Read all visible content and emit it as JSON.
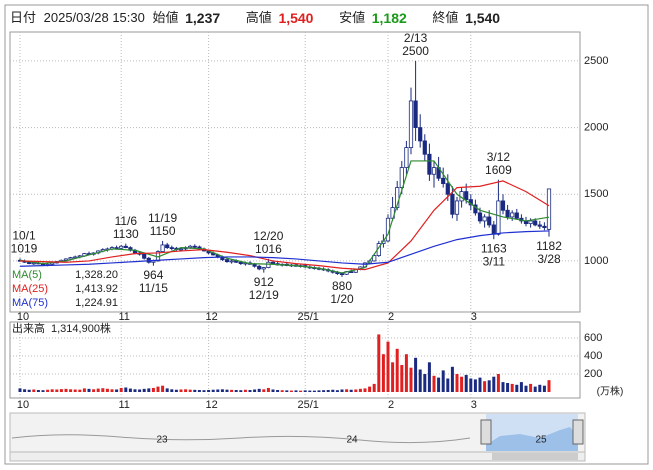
{
  "header": {
    "date_label": "日付",
    "date": "2025/03/28 15:30",
    "open_label": "始値",
    "open": "1,237",
    "high_label": "高値",
    "high": "1,540",
    "low_label": "安値",
    "low": "1,182",
    "close_label": "終値",
    "close": "1,540"
  },
  "chart_data": {
    "type": "candlestick",
    "up_color": "#ffffff",
    "down_color": "#1a2a80",
    "edge_color": "#1a2a80",
    "ylim": [
      617,
      2717
    ],
    "yticks": [
      1000,
      1500,
      2000,
      2500
    ],
    "grid": true,
    "xticks": [
      {
        "value": 0,
        "label": "10"
      },
      {
        "value": 22,
        "label": "11"
      },
      {
        "value": 41,
        "label": "12"
      },
      {
        "value": 62,
        "label": "25/1"
      },
      {
        "value": 80,
        "label": "2"
      },
      {
        "value": 98,
        "label": "3"
      }
    ],
    "candles": [
      [
        1005,
        1019,
        995,
        1000
      ],
      [
        1000,
        1010,
        985,
        990
      ],
      [
        990,
        998,
        975,
        980
      ],
      [
        980,
        992,
        970,
        985
      ],
      [
        985,
        995,
        975,
        978
      ],
      [
        978,
        988,
        965,
        970
      ],
      [
        970,
        982,
        960,
        975
      ],
      [
        975,
        990,
        970,
        985
      ],
      [
        985,
        1000,
        980,
        995
      ],
      [
        995,
        1010,
        988,
        1005
      ],
      [
        1005,
        1020,
        1000,
        1015
      ],
      [
        1015,
        1030,
        1008,
        1025
      ],
      [
        1025,
        1040,
        1015,
        1030
      ],
      [
        1030,
        1045,
        1020,
        1038
      ],
      [
        1038,
        1060,
        1030,
        1055
      ],
      [
        1055,
        1070,
        1045,
        1050
      ],
      [
        1050,
        1065,
        1040,
        1060
      ],
      [
        1060,
        1080,
        1050,
        1075
      ],
      [
        1075,
        1095,
        1065,
        1085
      ],
      [
        1085,
        1100,
        1070,
        1090
      ],
      [
        1090,
        1110,
        1080,
        1100
      ],
      [
        1100,
        1115,
        1085,
        1095
      ],
      [
        1095,
        1120,
        1090,
        1110
      ],
      [
        1110,
        1130,
        1095,
        1100
      ],
      [
        1100,
        1110,
        1070,
        1080
      ],
      [
        1080,
        1090,
        1050,
        1060
      ],
      [
        1060,
        1075,
        1040,
        1050
      ],
      [
        1050,
        1060,
        1010,
        1020
      ],
      [
        1020,
        1030,
        980,
        990
      ],
      [
        990,
        1010,
        964,
        1000
      ],
      [
        1000,
        1080,
        995,
        1070
      ],
      [
        1070,
        1150,
        1065,
        1120
      ],
      [
        1120,
        1135,
        1090,
        1100
      ],
      [
        1100,
        1115,
        1080,
        1095
      ],
      [
        1095,
        1105,
        1075,
        1085
      ],
      [
        1085,
        1100,
        1070,
        1090
      ],
      [
        1090,
        1110,
        1080,
        1100
      ],
      [
        1100,
        1120,
        1090,
        1110
      ],
      [
        1110,
        1125,
        1095,
        1105
      ],
      [
        1105,
        1115,
        1085,
        1090
      ],
      [
        1090,
        1100,
        1070,
        1075
      ],
      [
        1075,
        1085,
        1050,
        1060
      ],
      [
        1060,
        1070,
        1040,
        1045
      ],
      [
        1045,
        1055,
        1020,
        1030
      ],
      [
        1030,
        1040,
        1000,
        1010
      ],
      [
        1010,
        1020,
        985,
        995
      ],
      [
        995,
        1010,
        980,
        1000
      ],
      [
        1000,
        1012,
        985,
        990
      ],
      [
        990,
        1000,
        970,
        980
      ],
      [
        980,
        995,
        965,
        985
      ],
      [
        985,
        998,
        970,
        975
      ],
      [
        975,
        985,
        950,
        960
      ],
      [
        960,
        970,
        930,
        940
      ],
      [
        940,
        955,
        912,
        950
      ],
      [
        950,
        1016,
        945,
        990
      ],
      [
        990,
        1005,
        970,
        980
      ],
      [
        980,
        992,
        965,
        970
      ],
      [
        970,
        982,
        958,
        975
      ],
      [
        975,
        985,
        960,
        965
      ],
      [
        965,
        978,
        955,
        970
      ],
      [
        970,
        980,
        955,
        960
      ],
      [
        960,
        972,
        950,
        965
      ],
      [
        965,
        975,
        945,
        955
      ],
      [
        955,
        965,
        940,
        950
      ],
      [
        950,
        960,
        935,
        945
      ],
      [
        945,
        955,
        930,
        940
      ],
      [
        940,
        952,
        925,
        935
      ],
      [
        935,
        945,
        915,
        925
      ],
      [
        925,
        935,
        905,
        915
      ],
      [
        915,
        925,
        895,
        905
      ],
      [
        905,
        915,
        880,
        900
      ],
      [
        900,
        925,
        895,
        920
      ],
      [
        920,
        935,
        910,
        915
      ],
      [
        915,
        940,
        910,
        935
      ],
      [
        935,
        960,
        930,
        955
      ],
      [
        955,
        990,
        950,
        985
      ],
      [
        985,
        1010,
        975,
        1000
      ],
      [
        1000,
        1050,
        995,
        1040
      ],
      [
        1040,
        1150,
        1030,
        1130
      ],
      [
        1130,
        1200,
        1100,
        1150
      ],
      [
        1150,
        1350,
        1140,
        1320
      ],
      [
        1320,
        1480,
        1300,
        1400
      ],
      [
        1400,
        1600,
        1380,
        1550
      ],
      [
        1550,
        1750,
        1500,
        1700
      ],
      [
        1700,
        1900,
        1650,
        1850
      ],
      [
        1850,
        2300,
        1800,
        2200
      ],
      [
        2200,
        2500,
        1900,
        2000
      ],
      [
        2000,
        2100,
        1850,
        1900
      ],
      [
        1900,
        1950,
        1750,
        1800
      ],
      [
        1800,
        1880,
        1600,
        1650
      ],
      [
        1650,
        1750,
        1550,
        1700
      ],
      [
        1700,
        1780,
        1600,
        1620
      ],
      [
        1620,
        1700,
        1550,
        1580
      ],
      [
        1580,
        1650,
        1450,
        1500
      ],
      [
        1500,
        1560,
        1320,
        1350
      ],
      [
        1350,
        1480,
        1300,
        1450
      ],
      [
        1450,
        1550,
        1400,
        1520
      ],
      [
        1520,
        1580,
        1430,
        1460
      ],
      [
        1460,
        1500,
        1380,
        1420
      ],
      [
        1420,
        1460,
        1340,
        1360
      ],
      [
        1360,
        1400,
        1280,
        1300
      ],
      [
        1300,
        1350,
        1250,
        1330
      ],
      [
        1330,
        1380,
        1250,
        1270
      ],
      [
        1270,
        1300,
        1163,
        1200
      ],
      [
        1200,
        1609,
        1190,
        1450
      ],
      [
        1450,
        1500,
        1350,
        1380
      ],
      [
        1380,
        1420,
        1310,
        1330
      ],
      [
        1330,
        1380,
        1300,
        1360
      ],
      [
        1360,
        1390,
        1310,
        1320
      ],
      [
        1320,
        1350,
        1280,
        1300
      ],
      [
        1300,
        1330,
        1260,
        1280
      ],
      [
        1280,
        1320,
        1250,
        1300
      ],
      [
        1300,
        1320,
        1260,
        1270
      ],
      [
        1270,
        1300,
        1240,
        1260
      ],
      [
        1260,
        1290,
        1230,
        1250
      ],
      [
        1237,
        1540,
        1182,
        1540
      ]
    ],
    "ma": [
      {
        "name": "MA(5)",
        "value_label": "1,328.20",
        "color": "#2e8b2e",
        "x": [
          0,
          5,
          10,
          15,
          20,
          25,
          30,
          35,
          40,
          45,
          50,
          55,
          60,
          65,
          70,
          75,
          80,
          85,
          90,
          95,
          100,
          105,
          110,
          115
        ],
        "values": [
          1005,
          980,
          1000,
          1045,
          1090,
          1080,
          1030,
          1100,
          1090,
          1020,
          980,
          975,
          965,
          945,
          910,
          950,
          1200,
          1750,
          1750,
          1500,
          1380,
          1330,
          1300,
          1328
        ]
      },
      {
        "name": "MA(25)",
        "value_label": "1,413.92",
        "color": "#e02020",
        "x": [
          0,
          5,
          10,
          15,
          20,
          25,
          30,
          35,
          40,
          45,
          50,
          55,
          60,
          65,
          70,
          75,
          80,
          85,
          90,
          95,
          100,
          105,
          110,
          115
        ],
        "values": [
          1000,
          995,
          990,
          1000,
          1030,
          1055,
          1060,
          1075,
          1085,
          1065,
          1040,
          1000,
          980,
          965,
          945,
          935,
          985,
          1150,
          1380,
          1550,
          1560,
          1600,
          1520,
          1414
        ]
      },
      {
        "name": "MA(75)",
        "value_label": "1,224.91",
        "color": "#2030d0",
        "x": [
          0,
          5,
          10,
          15,
          20,
          25,
          30,
          35,
          40,
          45,
          50,
          55,
          60,
          65,
          70,
          75,
          80,
          85,
          90,
          95,
          100,
          105,
          110,
          115
        ],
        "values": [
          960,
          965,
          970,
          975,
          985,
          995,
          1005,
          1015,
          1025,
          1030,
          1030,
          1025,
          1015,
          1000,
          985,
          975,
          990,
          1050,
          1110,
          1160,
          1190,
          1210,
          1220,
          1225
        ]
      }
    ],
    "annotations": [
      {
        "index": 0,
        "date": "10/1",
        "price": 1019,
        "position": "above"
      },
      {
        "index": 23,
        "date": "11/6",
        "price": 1130,
        "position": "above"
      },
      {
        "index": 29,
        "date": "11/15",
        "price": 964,
        "position": "below"
      },
      {
        "index": 31,
        "date": "11/19",
        "price": 1150,
        "position": "above"
      },
      {
        "index": 53,
        "date": "12/19",
        "price": 912,
        "position": "below"
      },
      {
        "index": 54,
        "date": "12/20",
        "price": 1016,
        "position": "above"
      },
      {
        "index": 70,
        "date": "1/20",
        "price": 880,
        "position": "below"
      },
      {
        "index": 86,
        "date": "2/13",
        "price": 2500,
        "position": "above"
      },
      {
        "index": 103,
        "date": "3/11",
        "price": 1163,
        "position": "below"
      },
      {
        "index": 104,
        "date": "3/12",
        "price": 1609,
        "position": "above"
      },
      {
        "index": 115,
        "date": "3/28",
        "price": 1182,
        "position": "below"
      }
    ],
    "volume": {
      "label": "出来高",
      "value_label": "1,314,900株",
      "unit": "(万株)",
      "up_color": "#e02020",
      "down_color": "#1a2a80",
      "ylim": [
        0,
        778
      ],
      "yticks": [
        200,
        400,
        600
      ],
      "values": [
        40,
        30,
        25,
        28,
        22,
        20,
        25,
        30,
        28,
        32,
        35,
        30,
        28,
        26,
        40,
        35,
        30,
        38,
        42,
        36,
        30,
        28,
        45,
        50,
        38,
        30,
        28,
        35,
        40,
        45,
        60,
        70,
        40,
        30,
        25,
        28,
        30,
        26,
        24,
        22,
        20,
        22,
        25,
        28,
        30,
        26,
        24,
        22,
        20,
        25,
        22,
        28,
        35,
        30,
        45,
        28,
        22,
        20,
        18,
        16,
        18,
        15,
        18,
        16,
        15,
        18,
        20,
        22,
        25,
        20,
        28,
        30,
        25,
        28,
        35,
        40,
        60,
        90,
        640,
        420,
        560,
        330,
        480,
        300,
        420,
        270,
        380,
        250,
        200,
        330,
        180,
        160,
        240,
        150,
        280,
        200,
        170,
        190,
        150,
        140,
        160,
        120,
        130,
        170,
        200,
        110,
        100,
        90,
        80,
        110,
        70,
        90,
        60,
        80,
        70,
        131.49
      ]
    },
    "navigator": {
      "labels": [
        "23",
        "24",
        "25"
      ]
    }
  }
}
